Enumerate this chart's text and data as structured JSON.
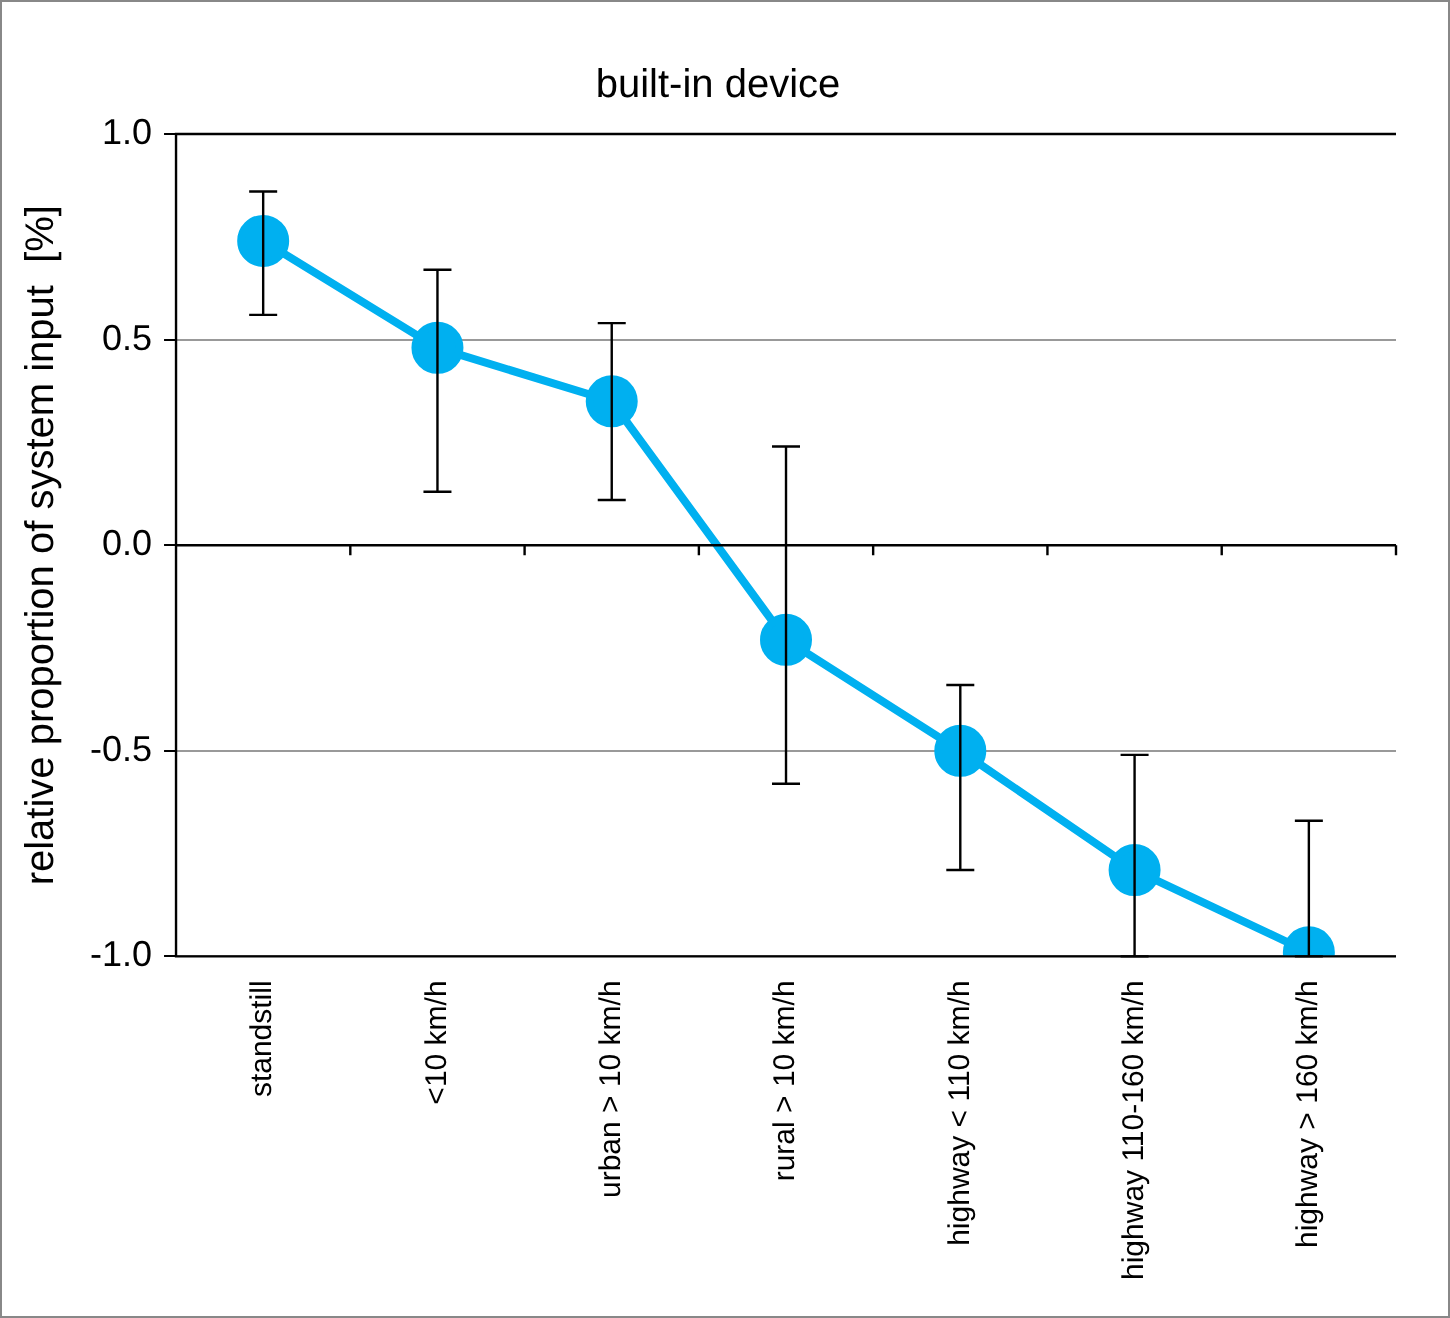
{
  "chart_data": {
    "type": "line",
    "title": "built-in device",
    "ylabel": "relative proportion of system input  [%]",
    "categories": [
      "standstill",
      "<10 km/h",
      "urban > 10 km/h",
      "rural > 10 km/h",
      "highway < 110 km/h",
      "highway 110-160 km/h",
      "highway > 160 km/h"
    ],
    "series": [
      {
        "color": "#00b0f0",
        "values": [
          0.74,
          0.48,
          0.35,
          -0.23,
          -0.5,
          -0.79,
          -0.99
        ],
        "errors": [
          [
            0.56,
            0.86
          ],
          [
            0.13,
            0.67
          ],
          [
            0.11,
            0.54
          ],
          [
            -0.58,
            0.24
          ],
          [
            -0.79,
            -0.34
          ],
          [
            -1.0,
            -0.51
          ],
          [
            -1.0,
            -0.67
          ]
        ]
      }
    ],
    "ylim": [
      -1,
      1
    ],
    "yticks": [
      {
        "value": -1,
        "label": "-1.0"
      },
      -0.5,
      {
        "value": 0,
        "label": "0.0"
      },
      0.5,
      {
        "value": 1,
        "label": "1.0"
      }
    ],
    "grid": "y",
    "legend": false,
    "marker": "circle",
    "line_style": "solid"
  }
}
